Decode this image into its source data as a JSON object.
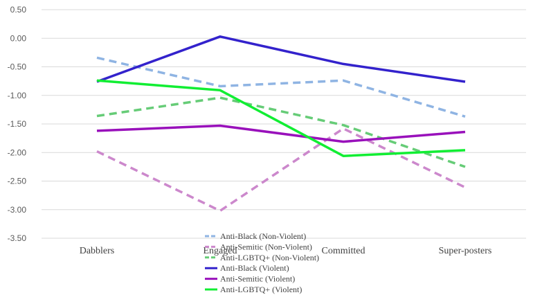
{
  "chart_data": {
    "type": "line",
    "title": "",
    "xlabel": "",
    "ylabel": "",
    "categories": [
      "Dabblers",
      "Engaged",
      "Committed",
      "Super-posters"
    ],
    "ylim": [
      -3.5,
      0.5
    ],
    "yticks": [
      0.5,
      0.0,
      -0.5,
      -1.0,
      -1.5,
      -2.0,
      -2.5,
      -3.0,
      -3.5
    ],
    "ytick_labels": [
      "0.50",
      "0.00",
      "-0.50",
      "-1.00",
      "-1.50",
      "-2.00",
      "-2.50",
      "-3.00",
      "-3.50"
    ],
    "grid": true,
    "legend_position": "bottom-center",
    "series": [
      {
        "name": "Anti-Black (Non-Violent)",
        "values": [
          -0.34,
          -0.84,
          -0.74,
          -1.37
        ],
        "color": "#8fb4e3",
        "dashed": true
      },
      {
        "name": "Anti-Semitic (Non-Violent)",
        "values": [
          -1.98,
          -3.02,
          -1.58,
          -2.61
        ],
        "color": "#cc88cc",
        "dashed": true
      },
      {
        "name": "Anti-LGBTQ+ (Non-Violent)",
        "values": [
          -1.36,
          -1.04,
          -1.52,
          -2.25
        ],
        "color": "#66cc77",
        "dashed": true
      },
      {
        "name": "Anti-Black (Violent)",
        "values": [
          -0.76,
          0.03,
          -0.45,
          -0.76
        ],
        "color": "#3322cc",
        "dashed": false
      },
      {
        "name": "Anti-Semitic (Violent)",
        "values": [
          -1.62,
          -1.53,
          -1.81,
          -1.64
        ],
        "color": "#9911bb",
        "dashed": false
      },
      {
        "name": "Anti-LGBTQ+ (Violent)",
        "values": [
          -0.74,
          -0.91,
          -2.06,
          -1.96
        ],
        "color": "#11ee33",
        "dashed": false
      }
    ]
  }
}
